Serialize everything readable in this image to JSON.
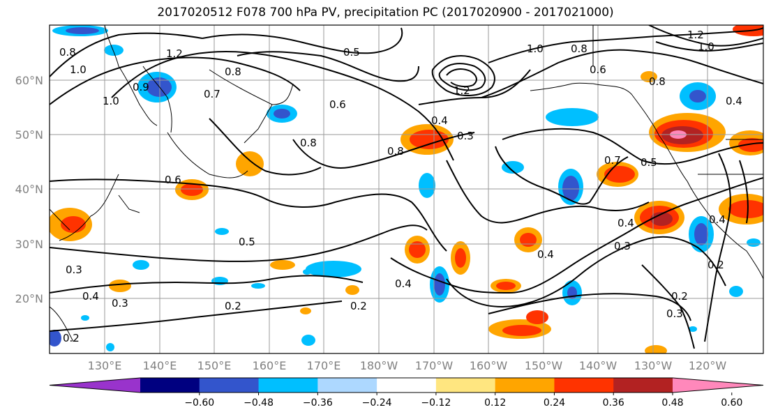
{
  "title": "2017020512 F078 700 hPa PV, precipitation PC (2017020900 - 2017021000)",
  "lat_labels": [
    "60°N",
    "50°N",
    "40°N",
    "30°N",
    "20°N"
  ],
  "lon_labels": [
    "130°E",
    "140°E",
    "150°E",
    "160°E",
    "170°E",
    "180°W",
    "170°W",
    "160°W",
    "150°W",
    "140°W",
    "130°W",
    "120°W"
  ],
  "contour_labels": [
    "0.8",
    "1.0",
    "1.2",
    "1.0",
    "0.9",
    "0.8",
    "0.7",
    "0.6",
    "0.5",
    "0.4",
    "0.3",
    "0.2",
    "0.5",
    "0.6",
    "0.8",
    "0.3",
    "0.4",
    "1.2",
    "1.0",
    "0.8",
    "0.6",
    "0.8",
    "0.7",
    "0.5",
    "0.4",
    "0.3",
    "0.4",
    "0.2",
    "0.3",
    "0.2",
    "0.4",
    "0.3",
    "0.2",
    "0.2",
    "0.4",
    "1.2",
    "1.0",
    "0.8",
    "0.4"
  ],
  "colorbar": {
    "colors": [
      "#9933cc",
      "#000080",
      "#3355cc",
      "#00bfff",
      "#add8ff",
      "#ffffff",
      "#ffe680",
      "#ffa500",
      "#ff3300",
      "#b22222",
      "#ff88bb"
    ],
    "tick_labels": [
      "−0.60",
      "−0.48",
      "−0.36",
      "−0.24",
      "−0.12",
      "0.12",
      "0.24",
      "0.36",
      "0.48",
      "0.60"
    ],
    "min_extend": "triangle",
    "max_extend": "triangle"
  }
}
